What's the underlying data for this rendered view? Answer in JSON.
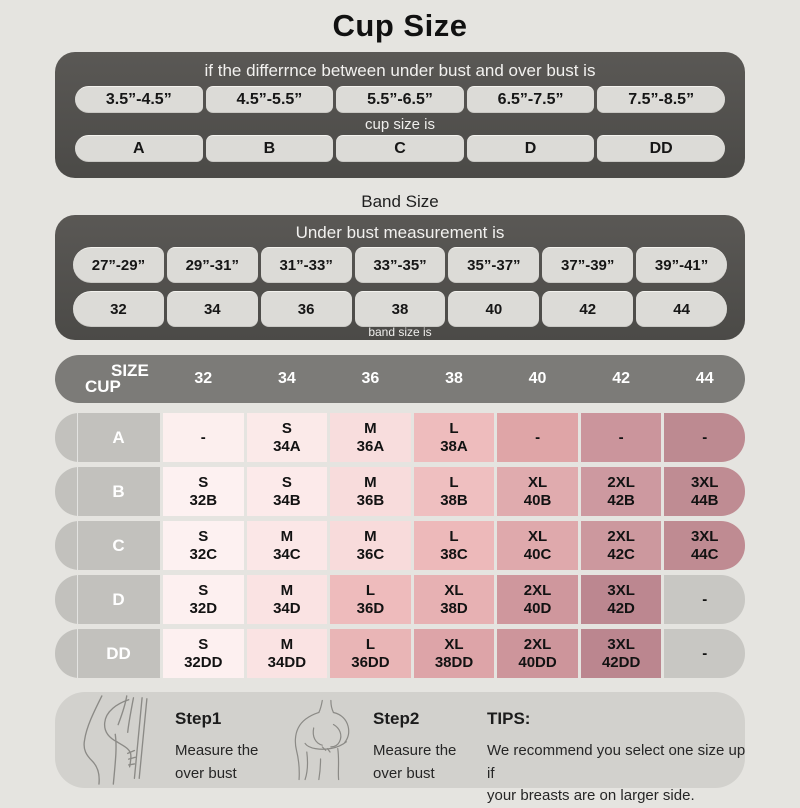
{
  "title": "Cup Size",
  "cup_section": {
    "header": "if the differrnce between under bust and over bust is",
    "ranges": [
      "3.5”-4.5”",
      "4.5”-5.5”",
      "5.5”-6.5”",
      "6.5”-7.5”",
      "7.5”-8.5”"
    ],
    "mid_label": "cup size is",
    "cups": [
      "A",
      "B",
      "C",
      "D",
      "DD"
    ]
  },
  "band_section": {
    "title": "Band Size",
    "header": "Under bust measurement is",
    "ranges": [
      "27”-29”",
      "29”-31”",
      "31”-33”",
      "33”-35”",
      "35”-37”",
      "37”-39”",
      "39”-41”"
    ],
    "bands": [
      "32",
      "34",
      "36",
      "38",
      "40",
      "42",
      "44"
    ],
    "footer_label": "band size is"
  },
  "size_table": {
    "corner_top": "SIZE",
    "corner_bottom": "CUP",
    "columns": [
      "32",
      "34",
      "36",
      "38",
      "40",
      "42",
      "44"
    ],
    "rows": [
      {
        "cup": "A",
        "cells": [
          {
            "lines": [
              "-"
            ],
            "bg": "#fcefee"
          },
          {
            "lines": [
              "S",
              "34A"
            ],
            "bg": "#fbeae9"
          },
          {
            "lines": [
              "M",
              "36A"
            ],
            "bg": "#f8dddd"
          },
          {
            "lines": [
              "L",
              "38A"
            ],
            "bg": "#eebcbd"
          },
          {
            "lines": [
              "-"
            ],
            "bg": "#dfa5a7"
          },
          {
            "lines": [
              "-"
            ],
            "bg": "#cb959c"
          },
          {
            "lines": [
              "-"
            ],
            "bg": "#bd8a91"
          }
        ]
      },
      {
        "cup": "B",
        "cells": [
          {
            "lines": [
              "S",
              "32B"
            ],
            "bg": "#fdf1f1"
          },
          {
            "lines": [
              "S",
              "34B"
            ],
            "bg": "#fceaea"
          },
          {
            "lines": [
              "M",
              "36B"
            ],
            "bg": "#f8dcdc"
          },
          {
            "lines": [
              "L",
              "38B"
            ],
            "bg": "#efbfc0"
          },
          {
            "lines": [
              "XL",
              "40B"
            ],
            "bg": "#e0abae"
          },
          {
            "lines": [
              "2XL",
              "42B"
            ],
            "bg": "#cd99a0"
          },
          {
            "lines": [
              "3XL",
              "44B"
            ],
            "bg": "#bf8c93"
          }
        ]
      },
      {
        "cup": "C",
        "cells": [
          {
            "lines": [
              "S",
              "32C"
            ],
            "bg": "#fdf1f1"
          },
          {
            "lines": [
              "M",
              "34C"
            ],
            "bg": "#fbe7e7"
          },
          {
            "lines": [
              "M",
              "36C"
            ],
            "bg": "#f8dbdb"
          },
          {
            "lines": [
              "L",
              "38C"
            ],
            "bg": "#edb9ba"
          },
          {
            "lines": [
              "XL",
              "40C"
            ],
            "bg": "#dfa9ac"
          },
          {
            "lines": [
              "2XL",
              "42C"
            ],
            "bg": "#cc989e"
          },
          {
            "lines": [
              "3XL",
              "44C"
            ],
            "bg": "#bf8b92"
          }
        ]
      },
      {
        "cup": "D",
        "cells": [
          {
            "lines": [
              "S",
              "32D"
            ],
            "bg": "#fdf0f0"
          },
          {
            "lines": [
              "M",
              "34D"
            ],
            "bg": "#fae3e3"
          },
          {
            "lines": [
              "L",
              "36D"
            ],
            "bg": "#eebbbc"
          },
          {
            "lines": [
              "XL",
              "38D"
            ],
            "bg": "#e7b1b3"
          },
          {
            "lines": [
              "2XL",
              "40D"
            ],
            "bg": "#cf979d"
          },
          {
            "lines": [
              "3XL",
              "42D"
            ],
            "bg": "#bc8790"
          },
          {
            "lines": [
              "-"
            ],
            "bg": "#c8c7c3"
          }
        ]
      },
      {
        "cup": "DD",
        "cells": [
          {
            "lines": [
              "S",
              "32DD"
            ],
            "bg": "#fdf0f0"
          },
          {
            "lines": [
              "M",
              "34DD"
            ],
            "bg": "#fae3e3"
          },
          {
            "lines": [
              "L",
              "36DD"
            ],
            "bg": "#e9b5b6"
          },
          {
            "lines": [
              "XL",
              "38DD"
            ],
            "bg": "#dda4a8"
          },
          {
            "lines": [
              "2XL",
              "40DD"
            ],
            "bg": "#cd959b"
          },
          {
            "lines": [
              "3XL",
              "42DD"
            ],
            "bg": "#bb868f"
          },
          {
            "lines": [
              "-"
            ],
            "bg": "#c8c7c3"
          }
        ]
      }
    ]
  },
  "footer": {
    "steps": [
      {
        "title": "Step1",
        "line1": "Measure the",
        "line2": "over bust"
      },
      {
        "title": "Step2",
        "line1": "Measure the",
        "line2": "over bust"
      }
    ],
    "tips_title": "TIPS:",
    "tips_line1": "We recommend you select one size up if",
    "tips_line2": "your breasts are on larger side."
  },
  "illustrations": [
    "side-torso-measuring-illustration",
    "front-torso-measuring-illustration"
  ],
  "colors": {
    "page_bg": "#e5e4e0",
    "dark_panel": "#504f4c",
    "table_header_bar": "#7c7b78",
    "pill_bg": "#dcdbd7",
    "row_label_bg": "#c2c1bd",
    "footer_bg": "#d2d1cd",
    "accent_rose_darkest": "#bd8a91"
  },
  "chart_data": [
    {
      "type": "table",
      "title": "Cup Size",
      "columns": [
        "difference between under bust and over bust",
        "cup size"
      ],
      "rows": [
        [
          "3.5”-4.5”",
          "A"
        ],
        [
          "4.5”-5.5”",
          "B"
        ],
        [
          "5.5”-6.5”",
          "C"
        ],
        [
          "6.5”-7.5”",
          "D"
        ],
        [
          "7.5”-8.5”",
          "DD"
        ]
      ]
    },
    {
      "type": "table",
      "title": "Band Size",
      "columns": [
        "under bust measurement",
        "band size"
      ],
      "rows": [
        [
          "27”-29”",
          "32"
        ],
        [
          "29”-31”",
          "34"
        ],
        [
          "31”-33”",
          "36"
        ],
        [
          "33”-35”",
          "38"
        ],
        [
          "35”-37”",
          "40"
        ],
        [
          "37”-39”",
          "42"
        ],
        [
          "39”-41”",
          "44"
        ]
      ]
    },
    {
      "type": "table",
      "title": "Size matrix (CUP x band SIZE)",
      "columns": [
        "CUP",
        "32",
        "34",
        "36",
        "38",
        "40",
        "42",
        "44"
      ],
      "rows": [
        [
          "A",
          "-",
          "S 34A",
          "M 36A",
          "L 38A",
          "-",
          "-",
          "-"
        ],
        [
          "B",
          "S 32B",
          "S 34B",
          "M 36B",
          "L 38B",
          "XL 40B",
          "2XL 42B",
          "3XL 44B"
        ],
        [
          "C",
          "S 32C",
          "M 34C",
          "M 36C",
          "L 38C",
          "XL 40C",
          "2XL 42C",
          "3XL 44C"
        ],
        [
          "D",
          "S 32D",
          "M 34D",
          "L 36D",
          "XL 38D",
          "2XL 40D",
          "3XL 42D",
          "-"
        ],
        [
          "DD",
          "S 32DD",
          "M 34DD",
          "L 36DD",
          "XL 38DD",
          "2XL 40DD",
          "3XL 42DD",
          "-"
        ]
      ]
    }
  ]
}
